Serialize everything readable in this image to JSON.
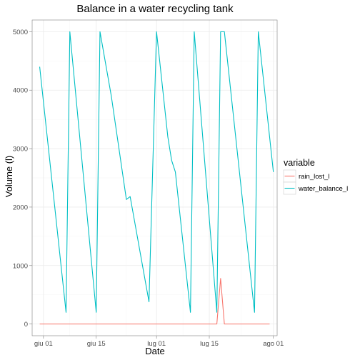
{
  "chart_data": {
    "type": "line",
    "title": "Balance in a water recycling tank",
    "xlabel": "Date",
    "ylabel": "Volume (l)",
    "x_ticks": [
      {
        "date": "2016-06-01",
        "label": "giu 01"
      },
      {
        "date": "2016-06-15",
        "label": "giu 15"
      },
      {
        "date": "2016-07-01",
        "label": "lug 01"
      },
      {
        "date": "2016-07-15",
        "label": "lug 15"
      },
      {
        "date": "2016-08-01",
        "label": "ago 01"
      }
    ],
    "xlim": [
      "2016-05-29",
      "2016-08-02"
    ],
    "y_ticks": [
      0,
      1000,
      2000,
      3000,
      4000,
      5000
    ],
    "ylim": [
      -200,
      5200
    ],
    "grid": true,
    "legend": {
      "title": "variable",
      "position": "right"
    },
    "series": [
      {
        "name": "rain_lost_l",
        "color": "#F8766D",
        "points": [
          [
            "2016-05-31",
            0
          ],
          [
            "2016-07-17",
            0
          ],
          [
            "2016-07-18",
            780
          ],
          [
            "2016-07-19",
            0
          ],
          [
            "2016-07-31",
            0
          ]
        ]
      },
      {
        "name": "water_balance_l",
        "color": "#00BFC4",
        "points": [
          [
            "2016-05-31",
            4400
          ],
          [
            "2016-06-07",
            200
          ],
          [
            "2016-06-08",
            5000
          ],
          [
            "2016-06-15",
            200
          ],
          [
            "2016-06-16",
            5000
          ],
          [
            "2016-06-19",
            3900
          ],
          [
            "2016-06-23",
            2130
          ],
          [
            "2016-06-24",
            2180
          ],
          [
            "2016-06-29",
            380
          ],
          [
            "2016-07-01",
            5000
          ],
          [
            "2016-07-04",
            3200
          ],
          [
            "2016-07-05",
            2800
          ],
          [
            "2016-07-06",
            2600
          ],
          [
            "2016-07-10",
            200
          ],
          [
            "2016-07-11",
            5000
          ],
          [
            "2016-07-17",
            200
          ],
          [
            "2016-07-18",
            5000
          ],
          [
            "2016-07-19",
            5000
          ],
          [
            "2016-07-27",
            200
          ],
          [
            "2016-07-28",
            5000
          ],
          [
            "2016-08-01",
            2600
          ]
        ]
      }
    ]
  }
}
